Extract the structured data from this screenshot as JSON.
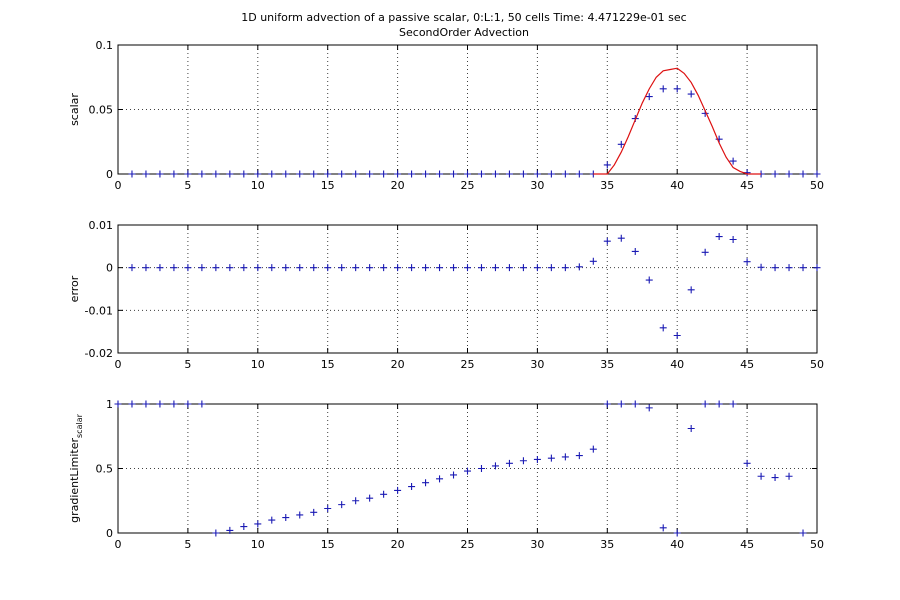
{
  "title": {
    "line1": "1D uniform advection of a passive scalar, 0:L:1, 50 cells Time: 4.471229e-01 sec",
    "line2": "SecondOrder Advection"
  },
  "chart_data": [
    {
      "type": "scatter",
      "ylabel": "scalar",
      "xlim": [
        0,
        50
      ],
      "ylim": [
        0,
        0.1
      ],
      "xticks": [
        0,
        5,
        10,
        15,
        20,
        25,
        30,
        35,
        40,
        45,
        50
      ],
      "yticks": [
        0,
        0.05,
        0.1
      ],
      "ytick_labels": [
        "0",
        "0.05",
        "0.1"
      ],
      "grid": true,
      "series": [
        {
          "marker": "+",
          "color": "#1a1ab4",
          "x": [
            1,
            2,
            3,
            4,
            5,
            6,
            7,
            8,
            9,
            10,
            11,
            12,
            13,
            14,
            15,
            16,
            17,
            18,
            19,
            20,
            21,
            22,
            23,
            24,
            25,
            26,
            27,
            28,
            29,
            30,
            31,
            32,
            33,
            34,
            35,
            36,
            37,
            38,
            39,
            40,
            41,
            42,
            43,
            44,
            45,
            46,
            47,
            48,
            49,
            50
          ],
          "y": [
            0,
            0,
            0,
            0,
            0,
            0,
            0,
            0,
            0,
            0,
            0,
            0,
            0,
            0,
            0,
            0,
            0,
            0,
            0,
            0,
            0,
            0,
            0,
            0,
            0,
            0,
            0,
            0,
            0,
            0,
            0,
            0,
            0,
            0,
            0.007,
            0.023,
            0.043,
            0.06,
            0.066,
            0.066,
            0.062,
            0.047,
            0.027,
            0.01,
            0.001,
            0,
            0,
            0,
            0,
            0
          ]
        },
        {
          "marker": "line",
          "color": "#dd1111",
          "x": [
            34,
            34.5,
            35,
            35.5,
            36,
            36.5,
            37,
            37.5,
            38,
            38.5,
            39,
            39.5,
            40,
            40.5,
            41,
            41.5,
            42,
            42.5,
            43,
            43.5,
            44,
            44.5,
            45,
            45.5,
            46
          ],
          "y": [
            0,
            0,
            0,
            0.007,
            0.017,
            0.029,
            0.042,
            0.055,
            0.066,
            0.075,
            0.08,
            0.081,
            0.082,
            0.078,
            0.071,
            0.061,
            0.049,
            0.037,
            0.024,
            0.013,
            0.005,
            0.002,
            0,
            0,
            0
          ]
        }
      ]
    },
    {
      "type": "scatter",
      "ylabel": "error",
      "xlim": [
        0,
        50
      ],
      "ylim": [
        -0.02,
        0.01
      ],
      "xticks": [
        0,
        5,
        10,
        15,
        20,
        25,
        30,
        35,
        40,
        45,
        50
      ],
      "yticks": [
        -0.02,
        -0.01,
        0,
        0.01
      ],
      "ytick_labels": [
        "-0.02",
        "-0.01",
        "0",
        "0.01"
      ],
      "grid": true,
      "series": [
        {
          "marker": "+",
          "color": "#1a1ab4",
          "x": [
            1,
            2,
            3,
            4,
            5,
            6,
            7,
            8,
            9,
            10,
            11,
            12,
            13,
            14,
            15,
            16,
            17,
            18,
            19,
            20,
            21,
            22,
            23,
            24,
            25,
            26,
            27,
            28,
            29,
            30,
            31,
            32,
            33,
            34,
            35,
            36,
            37,
            38,
            39,
            40,
            41,
            42,
            43,
            44,
            45,
            46,
            47,
            48,
            49,
            50
          ],
          "y": [
            0,
            0,
            0,
            0,
            0,
            0,
            0,
            0,
            0,
            0,
            0,
            0,
            0,
            0,
            0,
            0,
            0,
            0,
            0,
            0,
            0,
            0,
            0,
            0,
            0,
            0,
            0,
            0,
            0,
            0,
            0,
            0,
            0.0002,
            0.0015,
            0.0062,
            0.0069,
            0.0038,
            -0.0029,
            -0.0141,
            -0.0159,
            -0.0052,
            0.0036,
            0.0073,
            0.0066,
            0.0014,
            0.0001,
            0,
            0,
            0,
            0
          ]
        }
      ]
    },
    {
      "type": "scatter",
      "ylabel": "gradientLimiter",
      "ylabel_subscript": "scalar",
      "xlim": [
        0,
        50
      ],
      "ylim": [
        0,
        1
      ],
      "xticks": [
        0,
        5,
        10,
        15,
        20,
        25,
        30,
        35,
        40,
        45,
        50
      ],
      "yticks": [
        0,
        0.5,
        1
      ],
      "ytick_labels": [
        "0",
        "0.5",
        "1"
      ],
      "grid": true,
      "series": [
        {
          "marker": "+",
          "color": "#1a1ab4",
          "x": [
            0,
            1,
            2,
            3,
            4,
            5,
            6,
            7,
            8,
            9,
            10,
            11,
            12,
            13,
            14,
            15,
            16,
            17,
            18,
            19,
            20,
            21,
            22,
            23,
            24,
            25,
            26,
            27,
            28,
            29,
            30,
            31,
            32,
            33,
            34,
            35,
            36,
            37,
            38,
            39,
            40,
            41,
            42,
            43,
            44,
            45,
            46,
            47,
            48,
            49
          ],
          "y": [
            1,
            1,
            1,
            1,
            1,
            1,
            1,
            0,
            0.02,
            0.05,
            0.07,
            0.1,
            0.12,
            0.14,
            0.16,
            0.19,
            0.22,
            0.25,
            0.27,
            0.3,
            0.33,
            0.36,
            0.39,
            0.42,
            0.45,
            0.48,
            0.5,
            0.52,
            0.54,
            0.56,
            0.57,
            0.58,
            0.59,
            0.6,
            0.65,
            1,
            1,
            1,
            0.97,
            0.04,
            0,
            0.81,
            1,
            1,
            1,
            0.54,
            0.44,
            0.43,
            0.44,
            0
          ]
        }
      ]
    }
  ]
}
